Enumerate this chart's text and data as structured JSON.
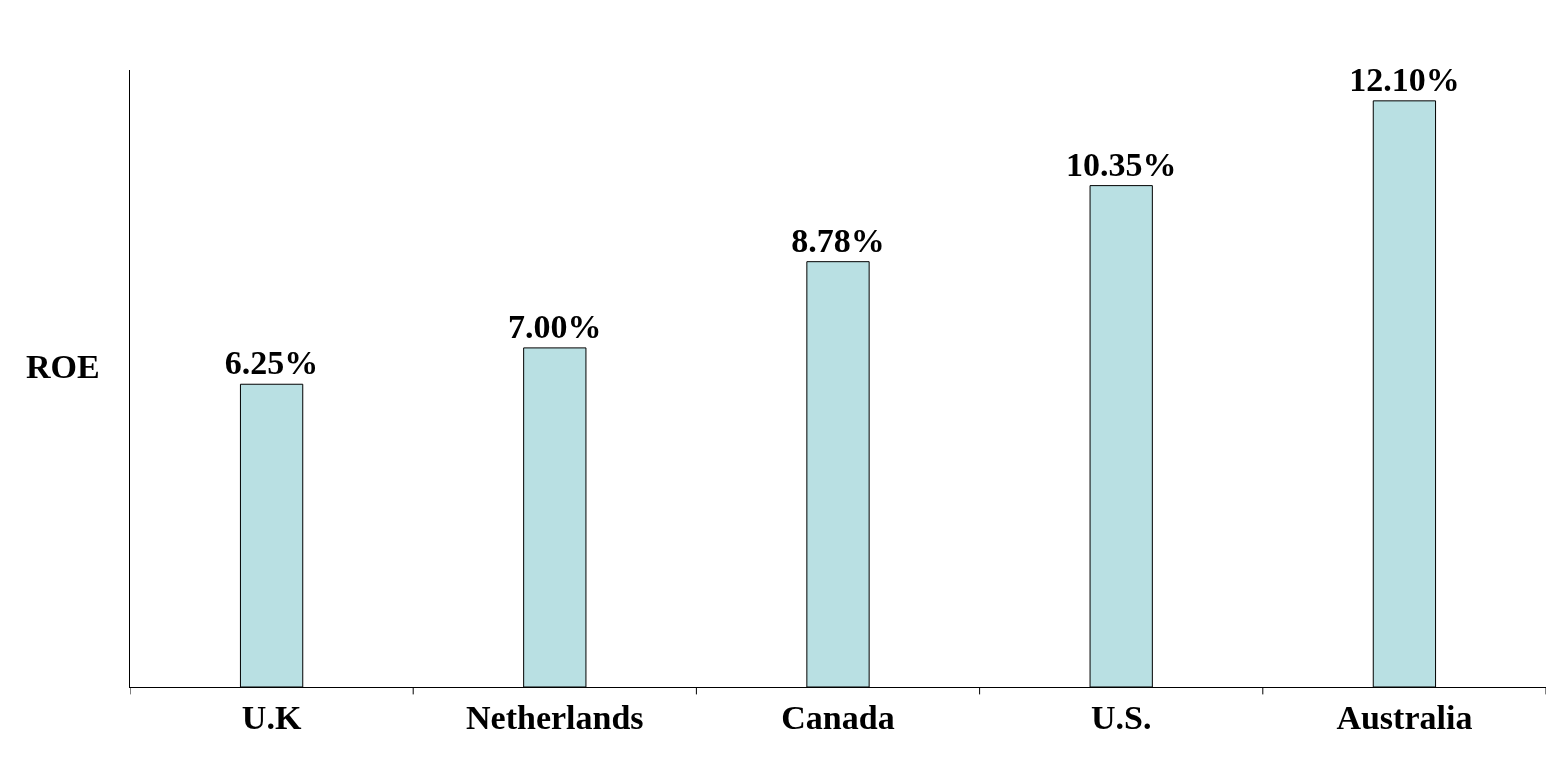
{
  "chart_data": {
    "type": "bar",
    "ylabel": "ROE",
    "categories": [
      "U.K",
      "Netherlands",
      "Canada",
      "U.S.",
      "Australia"
    ],
    "values": [
      6.25,
      7.0,
      8.78,
      10.35,
      12.1
    ],
    "value_labels": [
      "6.25%",
      "7.00%",
      "8.78%",
      "10.35%",
      "12.10%"
    ],
    "color": "#b9e0e3",
    "tick_labels": "x"
  }
}
